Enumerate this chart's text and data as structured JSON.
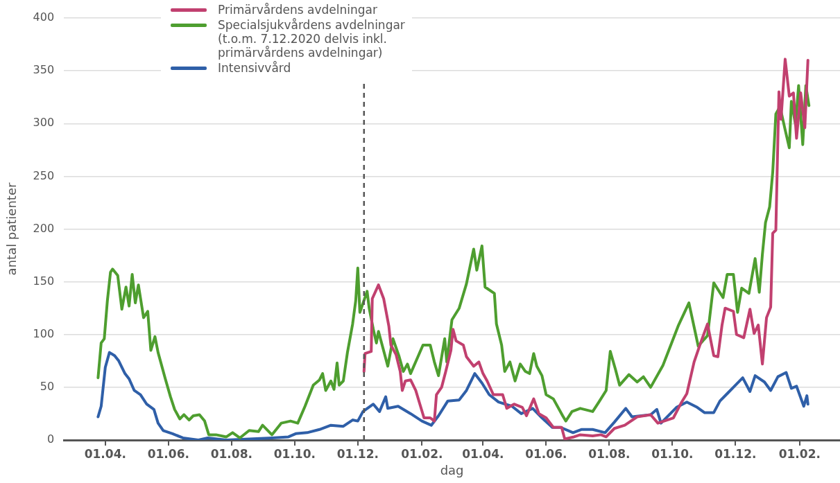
{
  "chart_data": {
    "type": "line",
    "xlabel": "dag",
    "ylabel": "antal patienter",
    "xlim": [
      "2020-02-21",
      "2022-03-12"
    ],
    "xticks": [
      {
        "value": "2020-04-01",
        "label": "01.04."
      },
      {
        "value": "2020-06-01",
        "label": "01.06."
      },
      {
        "value": "2020-08-01",
        "label": "01.08."
      },
      {
        "value": "2020-10-01",
        "label": "01.10."
      },
      {
        "value": "2020-12-01",
        "label": "01.12."
      },
      {
        "value": "2021-02-01",
        "label": "01.02."
      },
      {
        "value": "2021-04-01",
        "label": "01.04."
      },
      {
        "value": "2021-06-01",
        "label": "01.06."
      },
      {
        "value": "2021-08-01",
        "label": "01.08."
      },
      {
        "value": "2021-10-01",
        "label": "01.10."
      },
      {
        "value": "2021-12-01",
        "label": "01.12."
      },
      {
        "value": "2022-02-01",
        "label": "01.02."
      }
    ],
    "ylim": [
      0,
      400
    ],
    "yticks": [
      0,
      50,
      100,
      150,
      200,
      250,
      300,
      350,
      400
    ],
    "grid": "y",
    "legend": "top",
    "marker": "none",
    "ref_lines": [
      {
        "axis": "x",
        "value": "2020-12-07",
        "color": "#555555",
        "line_style": "dashed"
      }
    ],
    "series": [
      {
        "name": "Primärvårdens avdelningar",
        "color": "#c1406f",
        "x": [
          "2020-12-07",
          "2020-12-08",
          "2020-12-14",
          "2020-12-15",
          "2020-12-21",
          "2020-12-26",
          "2020-12-31",
          "2021-01-02",
          "2021-01-07",
          "2021-01-11",
          "2021-01-13",
          "2021-01-16",
          "2021-01-21",
          "2021-01-26",
          "2021-01-30",
          "2021-02-03",
          "2021-02-09",
          "2021-02-13",
          "2021-02-15",
          "2021-02-20",
          "2021-02-24",
          "2021-03-01",
          "2021-03-03",
          "2021-03-06",
          "2021-03-13",
          "2021-03-16",
          "2021-03-23",
          "2021-03-28",
          "2021-04-01",
          "2021-04-05",
          "2021-04-11",
          "2021-04-20",
          "2021-04-24",
          "2021-05-01",
          "2021-05-09",
          "2021-05-13",
          "2021-05-20",
          "2021-05-25",
          "2021-06-01",
          "2021-06-08",
          "2021-06-16",
          "2021-06-19",
          "2021-06-28",
          "2021-07-04",
          "2021-07-16",
          "2021-07-24",
          "2021-07-29",
          "2021-08-06",
          "2021-08-16",
          "2021-08-28",
          "2021-09-10",
          "2021-09-17",
          "2021-10-02",
          "2021-10-10",
          "2021-10-15",
          "2021-10-22",
          "2021-10-29",
          "2021-11-04",
          "2021-11-10",
          "2021-11-14",
          "2021-11-18",
          "2021-11-21",
          "2021-11-29",
          "2021-12-02",
          "2021-12-09",
          "2021-12-15",
          "2021-12-19",
          "2021-12-23",
          "2021-12-27",
          "2021-12-31",
          "2022-01-04",
          "2022-01-06",
          "2022-01-09",
          "2022-01-12",
          "2022-01-14",
          "2022-01-18",
          "2022-01-22",
          "2022-01-26",
          "2022-01-29",
          "2022-02-02",
          "2022-02-06",
          "2022-02-09"
        ],
        "values": [
          65,
          82,
          84,
          134,
          147,
          134,
          108,
          90,
          81,
          65,
          47,
          56,
          57,
          47,
          34,
          21,
          21,
          18,
          43,
          50,
          65,
          85,
          105,
          94,
          90,
          79,
          70,
          74,
          63,
          56,
          43,
          43,
          30,
          34,
          31,
          23,
          39,
          25,
          21,
          12,
          12,
          1,
          3,
          5,
          4,
          5,
          3,
          11,
          14,
          22,
          24,
          16,
          21,
          36,
          44,
          74,
          94,
          110,
          80,
          79,
          109,
          125,
          122,
          100,
          97,
          124,
          101,
          109,
          72,
          116,
          126,
          196,
          199,
          330,
          304,
          361,
          326,
          329,
          286,
          329,
          296,
          360
        ]
      },
      {
        "name": "Specialsjukvårdens avdelningar\n(t.o.m. 7.12.2020 delvis inkl.\nprimärvårdens avdelningar)",
        "color": "#4e9e2f",
        "x": [
          "2020-03-25",
          "2020-03-28",
          "2020-03-31",
          "2020-04-03",
          "2020-04-06",
          "2020-04-08",
          "2020-04-13",
          "2020-04-17",
          "2020-04-21",
          "2020-04-24",
          "2020-04-27",
          "2020-04-30",
          "2020-05-03",
          "2020-05-08",
          "2020-05-12",
          "2020-05-15",
          "2020-05-19",
          "2020-05-22",
          "2020-05-29",
          "2020-06-03",
          "2020-06-07",
          "2020-06-12",
          "2020-06-16",
          "2020-06-21",
          "2020-06-25",
          "2020-07-01",
          "2020-07-06",
          "2020-07-10",
          "2020-07-17",
          "2020-07-27",
          "2020-08-02",
          "2020-08-09",
          "2020-08-18",
          "2020-08-27",
          "2020-08-31",
          "2020-09-09",
          "2020-09-18",
          "2020-09-27",
          "2020-10-04",
          "2020-10-11",
          "2020-10-19",
          "2020-10-25",
          "2020-10-28",
          "2020-10-31",
          "2020-11-05",
          "2020-11-08",
          "2020-11-11",
          "2020-11-13",
          "2020-11-17",
          "2020-11-21",
          "2020-11-26",
          "2020-11-29",
          "2020-12-01",
          "2020-12-03",
          "2020-12-10",
          "2020-12-12",
          "2020-12-16",
          "2020-12-19",
          "2020-12-21",
          "2020-12-30",
          "2021-01-04",
          "2021-01-10",
          "2021-01-14",
          "2021-01-18",
          "2021-01-21",
          "2021-01-29",
          "2021-02-02",
          "2021-02-09",
          "2021-02-13",
          "2021-02-17",
          "2021-02-23",
          "2021-02-25",
          "2021-03-02",
          "2021-03-09",
          "2021-03-16",
          "2021-03-23",
          "2021-03-26",
          "2021-03-31",
          "2021-04-03",
          "2021-04-12",
          "2021-04-14",
          "2021-04-19",
          "2021-04-22",
          "2021-04-27",
          "2021-05-02",
          "2021-05-07",
          "2021-05-12",
          "2021-05-16",
          "2021-05-20",
          "2021-05-23",
          "2021-05-28",
          "2021-06-01",
          "2021-06-08",
          "2021-06-17",
          "2021-06-20",
          "2021-06-26",
          "2021-07-04",
          "2021-07-16",
          "2021-07-22",
          "2021-07-29",
          "2021-08-02",
          "2021-08-07",
          "2021-08-11",
          "2021-08-20",
          "2021-08-28",
          "2021-09-03",
          "2021-09-10",
          "2021-09-22",
          "2021-10-07",
          "2021-10-17",
          "2021-10-26",
          "2021-11-04",
          "2021-11-10",
          "2021-11-19",
          "2021-11-23",
          "2021-11-29",
          "2021-12-03",
          "2021-12-07",
          "2021-12-14",
          "2021-12-20",
          "2021-12-24",
          "2021-12-27",
          "2021-12-30",
          "2022-01-03",
          "2022-01-06",
          "2022-01-09",
          "2022-01-13",
          "2022-01-18",
          "2022-01-22",
          "2022-01-24",
          "2022-01-28",
          "2022-01-31",
          "2022-02-04",
          "2022-02-07",
          "2022-02-10"
        ],
        "values": [
          59,
          92,
          96,
          132,
          159,
          162,
          156,
          124,
          145,
          127,
          157,
          130,
          147,
          116,
          122,
          85,
          98,
          83,
          58,
          41,
          29,
          20,
          24,
          19,
          23,
          24,
          18,
          5,
          5,
          3,
          7,
          2,
          9,
          8,
          14,
          5,
          16,
          18,
          16,
          32,
          52,
          57,
          63,
          47,
          56,
          48,
          73,
          52,
          56,
          83,
          110,
          132,
          163,
          121,
          141,
          125,
          105,
          92,
          103,
          70,
          96,
          79,
          65,
          72,
          63,
          81,
          90,
          90,
          74,
          61,
          96,
          74,
          114,
          125,
          148,
          181,
          161,
          184,
          145,
          139,
          110,
          90,
          65,
          74,
          56,
          72,
          65,
          63,
          82,
          70,
          61,
          43,
          39,
          23,
          18,
          27,
          30,
          27,
          36,
          47,
          84,
          67,
          52,
          62,
          55,
          60,
          50,
          71,
          109,
          130,
          89,
          99,
          149,
          135,
          157,
          157,
          121,
          144,
          139,
          172,
          140,
          176,
          206,
          221,
          254,
          309,
          316,
          294,
          277,
          321,
          299,
          336,
          280,
          336,
          317
        ]
      },
      {
        "name": "Intensivvård",
        "color": "#2f5fa8",
        "x": [
          "2020-03-25",
          "2020-03-28",
          "2020-04-01",
          "2020-04-05",
          "2020-04-10",
          "2020-04-14",
          "2020-04-20",
          "2020-04-24",
          "2020-04-29",
          "2020-05-05",
          "2020-05-11",
          "2020-05-18",
          "2020-05-22",
          "2020-05-27",
          "2020-06-05",
          "2020-06-15",
          "2020-06-30",
          "2020-07-09",
          "2020-07-27",
          "2020-08-18",
          "2020-09-09",
          "2020-09-25",
          "2020-10-02",
          "2020-10-13",
          "2020-10-25",
          "2020-11-05",
          "2020-11-17",
          "2020-11-26",
          "2020-12-01",
          "2020-12-06",
          "2020-12-16",
          "2020-12-22",
          "2020-12-28",
          "2020-12-30",
          "2021-01-09",
          "2021-01-21",
          "2021-02-01",
          "2021-02-10",
          "2021-02-17",
          "2021-02-26",
          "2021-03-09",
          "2021-03-16",
          "2021-03-24",
          "2021-03-31",
          "2021-04-07",
          "2021-04-16",
          "2021-04-29",
          "2021-05-08",
          "2021-05-19",
          "2021-05-28",
          "2021-06-07",
          "2021-06-15",
          "2021-06-27",
          "2021-07-05",
          "2021-07-16",
          "2021-07-28",
          "2021-08-06",
          "2021-08-17",
          "2021-08-23",
          "2021-09-10",
          "2021-09-16",
          "2021-09-20",
          "2021-10-05",
          "2021-10-15",
          "2021-10-25",
          "2021-11-01",
          "2021-11-10",
          "2021-11-16",
          "2021-11-24",
          "2021-11-29",
          "2021-12-08",
          "2021-12-15",
          "2021-12-20",
          "2021-12-29",
          "2022-01-04",
          "2022-01-11",
          "2022-01-19",
          "2022-01-24",
          "2022-01-29",
          "2022-02-05",
          "2022-02-08",
          "2022-02-09"
        ],
        "values": [
          22,
          32,
          69,
          83,
          80,
          75,
          63,
          58,
          47,
          43,
          34,
          29,
          16,
          9,
          6,
          2,
          0,
          2,
          0,
          1,
          2,
          3,
          6,
          7,
          10,
          14,
          13,
          19,
          18,
          27,
          34,
          27,
          41,
          30,
          32,
          25,
          18,
          14,
          23,
          37,
          38,
          47,
          63,
          54,
          43,
          36,
          32,
          25,
          30,
          21,
          12,
          12,
          7,
          10,
          10,
          7,
          17,
          30,
          22,
          24,
          29,
          16,
          31,
          36,
          31,
          26,
          26,
          37,
          45,
          50,
          59,
          46,
          61,
          55,
          47,
          60,
          64,
          49,
          51,
          32,
          42,
          34
        ]
      }
    ]
  }
}
